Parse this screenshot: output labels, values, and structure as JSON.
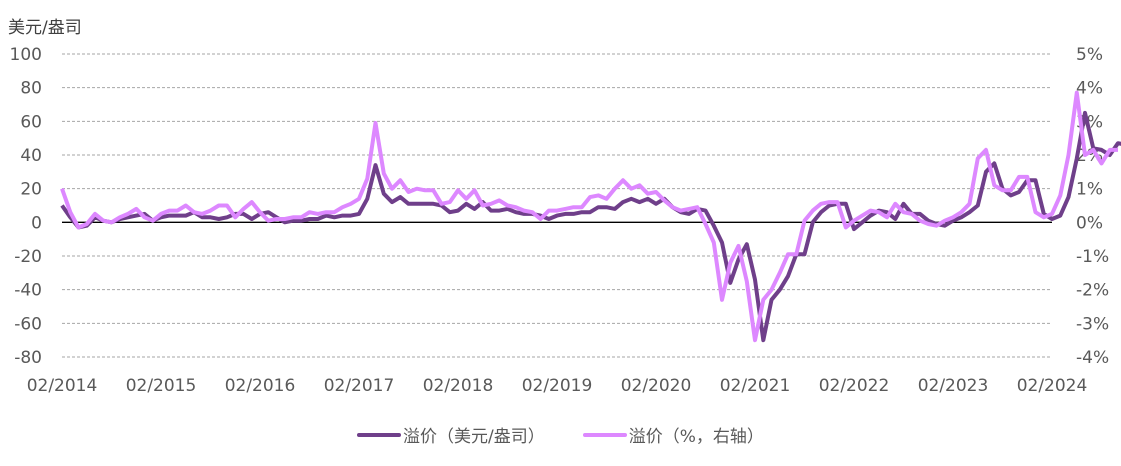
{
  "chart_data": {
    "type": "line",
    "title": "",
    "ylabel_left": "美元/盎司",
    "ylabel_right": "%",
    "xlabel": "",
    "x_ticks": [
      "02/2014",
      "02/2015",
      "02/2016",
      "02/2017",
      "02/2018",
      "02/2019",
      "02/2020",
      "02/2021",
      "02/2022",
      "02/2023",
      "02/2024"
    ],
    "y_left_ticks": [
      100,
      80,
      60,
      40,
      20,
      0,
      -20,
      -40,
      -60,
      -80
    ],
    "y_right_ticks": [
      "5%",
      "4%",
      "3%",
      "2%",
      "1%",
      "0%",
      "-1%",
      "-2%",
      "-3%",
      "-4%"
    ],
    "ylim_left": [
      -80,
      100
    ],
    "ylim_right": [
      -4,
      5
    ],
    "grid": "horizontal dashed",
    "legend_position": "bottom-center",
    "x_start": "02/2014",
    "x_step": "1 month",
    "series": [
      {
        "name": "溢价（美元/盎司）",
        "axis": "left",
        "color": "#6f3f8a",
        "values": [
          10,
          3,
          -3,
          -2,
          3,
          1,
          0,
          2,
          3,
          4,
          5,
          1,
          3,
          4,
          4,
          4,
          6,
          3,
          3,
          2,
          3,
          5,
          5,
          2,
          5,
          6,
          3,
          0,
          1,
          1,
          2,
          2,
          4,
          3,
          4,
          4,
          5,
          14,
          34,
          17,
          12,
          15,
          11,
          11,
          11,
          11,
          10,
          6,
          7,
          11,
          8,
          12,
          7,
          7,
          8,
          6,
          5,
          5,
          4,
          2,
          4,
          5,
          5,
          6,
          6,
          9,
          9,
          8,
          12,
          14,
          12,
          14,
          11,
          14,
          9,
          6,
          5,
          8,
          7,
          -2,
          -12,
          -36,
          -22,
          -13,
          -34,
          -70,
          -46,
          -40,
          -32,
          -19,
          -19,
          0,
          6,
          10,
          11,
          11,
          -4,
          0,
          4,
          7,
          6,
          2,
          11,
          5,
          5,
          1,
          -1,
          -2,
          1,
          3,
          6,
          10,
          30,
          35,
          20,
          16,
          18,
          25,
          25,
          5,
          2,
          4,
          15,
          38,
          65,
          44,
          43,
          40,
          47,
          46
        ]
      },
      {
        "name": "溢价（%，右轴）",
        "axis": "right",
        "color": "#dd88ff",
        "values": [
          1.0,
          0.3,
          -0.15,
          -0.05,
          0.25,
          0.05,
          0.0,
          0.15,
          0.25,
          0.4,
          0.15,
          0.05,
          0.25,
          0.35,
          0.35,
          0.5,
          0.3,
          0.25,
          0.35,
          0.5,
          0.5,
          0.15,
          0.4,
          0.6,
          0.3,
          0.05,
          0.1,
          0.1,
          0.15,
          0.15,
          0.3,
          0.25,
          0.3,
          0.3,
          0.45,
          0.55,
          0.7,
          1.3,
          2.95,
          1.45,
          1.0,
          1.25,
          0.9,
          1.0,
          0.95,
          0.95,
          0.55,
          0.6,
          0.95,
          0.7,
          0.95,
          0.5,
          0.55,
          0.65,
          0.5,
          0.45,
          0.35,
          0.3,
          0.1,
          0.35,
          0.35,
          0.4,
          0.45,
          0.45,
          0.75,
          0.8,
          0.7,
          1.0,
          1.25,
          1.0,
          1.1,
          0.85,
          0.9,
          0.65,
          0.45,
          0.35,
          0.4,
          0.45,
          -0.05,
          -0.6,
          -2.3,
          -1.2,
          -0.7,
          -1.75,
          -3.5,
          -2.3,
          -2.0,
          -1.5,
          -0.95,
          -0.95,
          0.05,
          0.35,
          0.55,
          0.6,
          0.6,
          -0.15,
          0.05,
          0.2,
          0.35,
          0.3,
          0.15,
          0.55,
          0.3,
          0.25,
          0.05,
          -0.05,
          -0.1,
          0.05,
          0.15,
          0.3,
          0.55,
          1.9,
          2.15,
          1.1,
          0.95,
          0.95,
          1.35,
          1.35,
          0.3,
          0.15,
          0.25,
          0.8,
          2.0,
          3.85,
          2.0,
          2.15,
          1.75,
          2.15,
          2.15
        ]
      }
    ]
  },
  "axes": {
    "left_unit_label": "美元/盎司"
  },
  "legend": {
    "items": [
      {
        "label": "溢价（美元/盎司）",
        "color": "#6f3f8a"
      },
      {
        "label": "溢价（%，右轴）",
        "color": "#dd88ff"
      }
    ]
  }
}
